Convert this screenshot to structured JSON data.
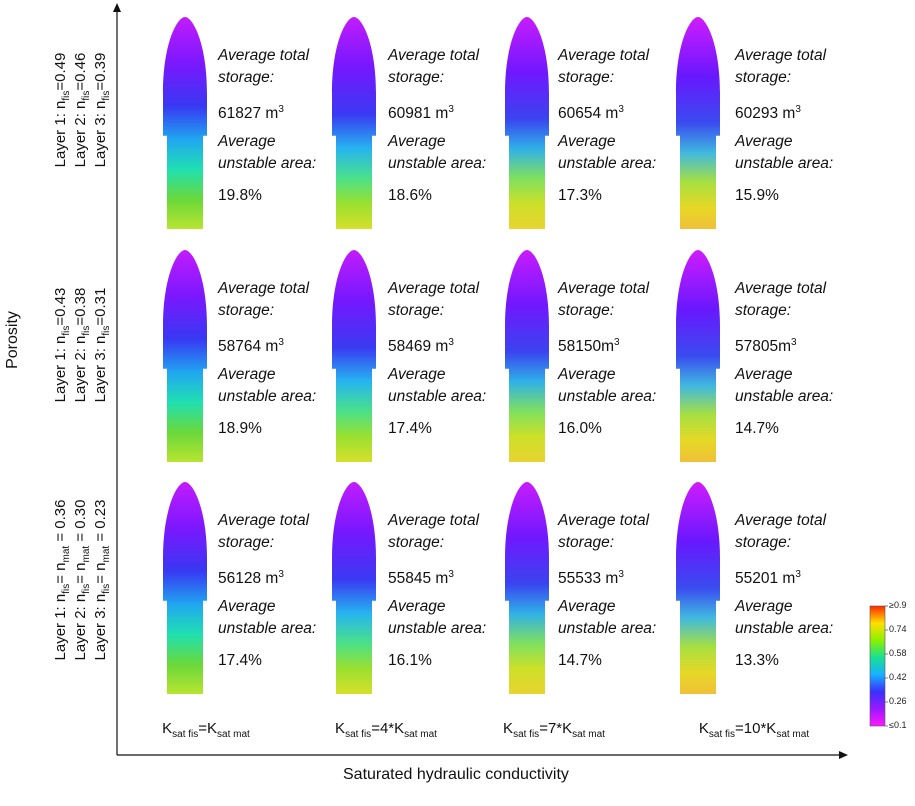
{
  "axes": {
    "y_title": "Porosity",
    "x_title": "Saturated hydraulic conductivity"
  },
  "row_labels": [
    [
      {
        "pre": "Layer 1: n",
        "sub": "fis",
        "post": "=0.49"
      },
      {
        "pre": "Layer 2: n",
        "sub": "fis",
        "post": "=0.46"
      },
      {
        "pre": "Layer 3: n",
        "sub": "fis",
        "post": "=0.39"
      }
    ],
    [
      {
        "pre": "Layer 1: n",
        "sub": "fis",
        "post": "=0.43"
      },
      {
        "pre": "Layer 2: n",
        "sub": "fis",
        "post": "=0.38"
      },
      {
        "pre": "Layer 3: n",
        "sub": "fis",
        "post": "=0.31"
      }
    ],
    [
      {
        "pre": "Layer 1: n",
        "sub": "fis",
        "mid": "= n",
        "sub2": "mat",
        "post": " = 0.36"
      },
      {
        "pre": "Layer 2: n",
        "sub": "fis",
        "mid": "= n",
        "sub2": "mat",
        "post": " = 0.30"
      },
      {
        "pre": "Layer 3: n",
        "sub": "fis",
        "mid": "= n",
        "sub2": "mat",
        "post": " = 0.23"
      }
    ]
  ],
  "col_labels": [
    {
      "k": "K",
      "s1": "sat fis",
      "mid": "=K",
      "s2": "sat mat"
    },
    {
      "k": "K",
      "s1": "sat fis",
      "mid": "=4*K",
      "s2": "sat mat"
    },
    {
      "k": "K",
      "s1": "sat fis",
      "mid": "=7*K",
      "s2": "sat mat"
    },
    {
      "k": "K",
      "s1": "sat fis",
      "mid": "=10*K",
      "s2": "sat mat"
    }
  ],
  "cells": [
    [
      {
        "storage_label_1": "Average total",
        "storage_label_2": "storage:",
        "storage": "61827 m",
        "storage_sup": "3",
        "unstable_label_1": "Average",
        "unstable_label_2": "unstable area:",
        "unstable": "19.8%"
      },
      {
        "storage_label_1": "Average total",
        "storage_label_2": "storage:",
        "storage": "60981 m",
        "storage_sup": "3",
        "unstable_label_1": "Average",
        "unstable_label_2": "unstable area:",
        "unstable": "18.6%"
      },
      {
        "storage_label_1": "Average total",
        "storage_label_2": "storage:",
        "storage": "60654 m",
        "storage_sup": "3",
        "unstable_label_1": "Average",
        "unstable_label_2": "unstable area:",
        "unstable": "17.3%"
      },
      {
        "storage_label_1": "Average total",
        "storage_label_2": "storage:",
        "storage": "60293 m",
        "storage_sup": "3",
        "unstable_label_1": "Average",
        "unstable_label_2": "unstable area:",
        "unstable": "15.9%"
      }
    ],
    [
      {
        "storage_label_1": "Average total",
        "storage_label_2": "storage:",
        "storage": "58764 m",
        "storage_sup": "3",
        "unstable_label_1": "Average",
        "unstable_label_2": "unstable area:",
        "unstable": "18.9%"
      },
      {
        "storage_label_1": "Average total",
        "storage_label_2": "storage:",
        "storage": "58469 m",
        "storage_sup": "3",
        "unstable_label_1": "Average",
        "unstable_label_2": "unstable area:",
        "unstable": "17.4%"
      },
      {
        "storage_label_1": "Average total",
        "storage_label_2": "storage:",
        "storage": "58150m",
        "storage_sup": "3",
        "unstable_label_1": "Average",
        "unstable_label_2": "unstable area:",
        "unstable": "16.0%"
      },
      {
        "storage_label_1": "Average total",
        "storage_label_2": "storage:",
        "storage": "57805m",
        "storage_sup": "3",
        "unstable_label_1": "Average",
        "unstable_label_2": "unstable area:",
        "unstable": "14.7%"
      }
    ],
    [
      {
        "storage_label_1": "Average total",
        "storage_label_2": "storage:",
        "storage": "56128 m",
        "storage_sup": "3",
        "unstable_label_1": "Average",
        "unstable_label_2": "unstable area:",
        "unstable": "17.4%"
      },
      {
        "storage_label_1": "Average total",
        "storage_label_2": "storage:",
        "storage": "55845 m",
        "storage_sup": "3",
        "unstable_label_1": "Average",
        "unstable_label_2": "unstable area:",
        "unstable": "16.1%"
      },
      {
        "storage_label_1": "Average total",
        "storage_label_2": "storage:",
        "storage": "55533 m",
        "storage_sup": "3",
        "unstable_label_1": "Average",
        "unstable_label_2": "unstable area:",
        "unstable": "14.7%"
      },
      {
        "storage_label_1": "Average total",
        "storage_label_2": "storage:",
        "storage": "55201 m",
        "storage_sup": "3",
        "unstable_label_1": "Average",
        "unstable_label_2": "unstable area:",
        "unstable": "13.3%"
      }
    ]
  ],
  "colorbar": {
    "ticks": [
      "≥0.9",
      "0.74",
      "0.58",
      "0.42",
      "0.26",
      "≤0.1"
    ],
    "colors": [
      "#ff2a00",
      "#ffe000",
      "#8cf000",
      "#18e090",
      "#18b0ff",
      "#3a30ff",
      "#9a18ff",
      "#ff18ff"
    ]
  }
}
